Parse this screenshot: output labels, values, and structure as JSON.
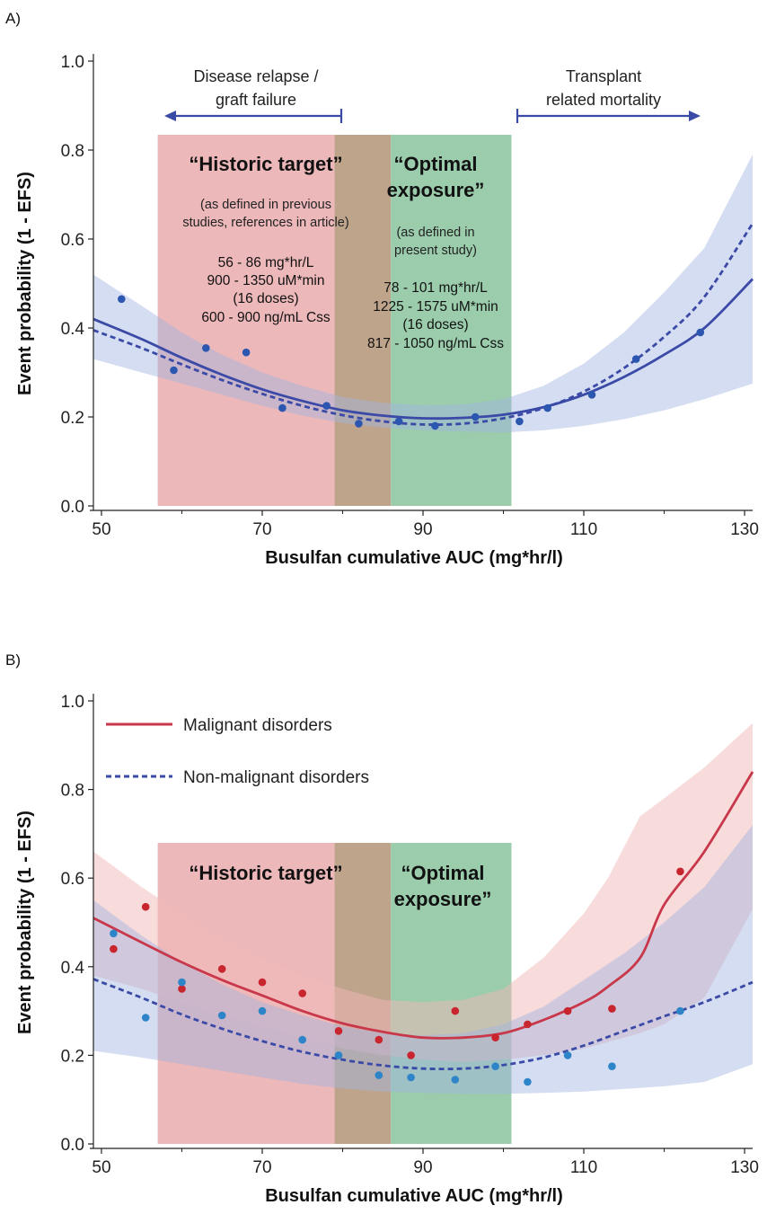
{
  "chart_data": [
    {
      "panel": "A)",
      "type": "line",
      "xlabel": "Busulfan cumulative AUC (mg*hr/l)",
      "ylabel": "Event probability (1 - EFS)",
      "xlim": [
        49,
        131
      ],
      "ylim": [
        0,
        1.0
      ],
      "xticks": [
        50,
        70,
        90,
        110,
        130
      ],
      "yticks": [
        "0.0",
        "0.2",
        "0.4",
        "0.6",
        "0.8",
        "1.0"
      ],
      "regions": [
        {
          "label": "“Historic target”",
          "x0": 57,
          "x1": 86,
          "color": "#e8a4a6"
        },
        {
          "label": "“Optimal exposure”",
          "x0": 79,
          "x1": 101,
          "color": "#7fbf96"
        }
      ],
      "annotations": {
        "left_arrow": [
          "Disease relapse /",
          "graft failure"
        ],
        "right_arrow": [
          "Transplant",
          "related mortality"
        ],
        "historic_title": "“Historic target”",
        "historic_sub": [
          "(as defined in previous",
          "studies, references in article)"
        ],
        "historic_values": [
          "56 - 86 mg*hr/L",
          "900 - 1350 uM*min",
          "(16 doses)",
          "600 - 900 ng/mL Css"
        ],
        "optimal_title": [
          "“Optimal",
          "exposure”"
        ],
        "optimal_sub": [
          "(as defined in",
          "present study)"
        ],
        "optimal_values": [
          "78 - 101 mg*hr/L",
          "1225 - 1575 uM*min",
          "(16 doses)",
          "817 - 1050 ng/mL Css"
        ]
      },
      "series": [
        {
          "style": "solid",
          "color": "#3a4aa6",
          "x": [
            49,
            55,
            60,
            65,
            70,
            75,
            80,
            85,
            90,
            95,
            100,
            105,
            110,
            115,
            120,
            125,
            131
          ],
          "y": [
            0.42,
            0.375,
            0.333,
            0.295,
            0.262,
            0.236,
            0.215,
            0.203,
            0.197,
            0.198,
            0.205,
            0.222,
            0.25,
            0.29,
            0.34,
            0.4,
            0.51
          ],
          "ci_upper": [
            0.52,
            0.45,
            0.39,
            0.34,
            0.3,
            0.27,
            0.245,
            0.232,
            0.226,
            0.228,
            0.24,
            0.27,
            0.32,
            0.39,
            0.48,
            0.58,
            0.79
          ],
          "ci_lower": [
            0.33,
            0.3,
            0.275,
            0.25,
            0.225,
            0.203,
            0.186,
            0.176,
            0.17,
            0.167,
            0.165,
            0.17,
            0.18,
            0.195,
            0.215,
            0.24,
            0.275
          ]
        },
        {
          "style": "dashed",
          "color": "#3a4aa6",
          "x": [
            49,
            55,
            60,
            65,
            70,
            75,
            80,
            85,
            90,
            95,
            100,
            105,
            110,
            115,
            120,
            125,
            131
          ],
          "y": [
            0.395,
            0.355,
            0.318,
            0.283,
            0.252,
            0.225,
            0.204,
            0.19,
            0.183,
            0.185,
            0.197,
            0.22,
            0.257,
            0.31,
            0.38,
            0.47,
            0.635
          ]
        }
      ],
      "points": {
        "color": "#2b57b0",
        "x": [
          52.5,
          59,
          63,
          68,
          72.5,
          78,
          82,
          87,
          91.5,
          96.5,
          102,
          105.5,
          111,
          116.5,
          124.5
        ],
        "y": [
          0.465,
          0.305,
          0.355,
          0.345,
          0.22,
          0.225,
          0.185,
          0.19,
          0.18,
          0.2,
          0.19,
          0.22,
          0.25,
          0.33,
          0.39
        ]
      }
    },
    {
      "panel": "B)",
      "type": "line",
      "xlabel": "Busulfan cumulative AUC (mg*hr/l)",
      "ylabel": "Event probability (1 - EFS)",
      "xlim": [
        49,
        131
      ],
      "ylim": [
        0,
        1.0
      ],
      "xticks": [
        50,
        70,
        90,
        110,
        130
      ],
      "yticks": [
        "0.0",
        "0.2",
        "0.4",
        "0.6",
        "0.8",
        "1.0"
      ],
      "regions": [
        {
          "label": "“Historic target”",
          "x0": 57,
          "x1": 86,
          "color": "#e8a4a6"
        },
        {
          "label": "“Optimal exposure”",
          "x0": 79,
          "x1": 101,
          "color": "#7fbf96"
        }
      ],
      "annotations": {
        "historic_title": "“Historic target”",
        "optimal_title": [
          "“Optimal",
          "exposure”"
        ]
      },
      "legend": [
        {
          "name": "Malignant disorders",
          "style": "solid",
          "color": "#c8374a"
        },
        {
          "name": "Non-malignant disorders",
          "style": "dashed",
          "color": "#3a4aa6"
        }
      ],
      "series": [
        {
          "name": "Malignant disorders",
          "style": "solid",
          "color": "#c8374a",
          "x": [
            49,
            55,
            60,
            65,
            70,
            75,
            80,
            85,
            90,
            95,
            100,
            105,
            110,
            113,
            117,
            120,
            125,
            131
          ],
          "y": [
            0.51,
            0.455,
            0.41,
            0.37,
            0.335,
            0.3,
            0.272,
            0.253,
            0.24,
            0.24,
            0.25,
            0.28,
            0.32,
            0.355,
            0.42,
            0.54,
            0.66,
            0.84
          ],
          "ci_upper": [
            0.66,
            0.58,
            0.52,
            0.465,
            0.42,
            0.38,
            0.35,
            0.325,
            0.32,
            0.325,
            0.35,
            0.42,
            0.52,
            0.6,
            0.74,
            0.78,
            0.85,
            0.95
          ],
          "ci_lower": [
            0.38,
            0.35,
            0.32,
            0.29,
            0.265,
            0.24,
            0.215,
            0.2,
            0.19,
            0.185,
            0.19,
            0.2,
            0.215,
            0.23,
            0.25,
            0.27,
            0.33,
            0.53
          ]
        },
        {
          "name": "Non-malignant disorders",
          "style": "dashed",
          "color": "#3a4aa6",
          "x": [
            49,
            55,
            60,
            65,
            70,
            75,
            80,
            85,
            90,
            95,
            100,
            105,
            110,
            115,
            120,
            125,
            131
          ],
          "y": [
            0.372,
            0.33,
            0.292,
            0.26,
            0.232,
            0.208,
            0.19,
            0.177,
            0.17,
            0.17,
            0.178,
            0.195,
            0.222,
            0.255,
            0.288,
            0.32,
            0.365
          ],
          "ci_upper": [
            0.55,
            0.47,
            0.41,
            0.36,
            0.32,
            0.29,
            0.265,
            0.25,
            0.245,
            0.25,
            0.27,
            0.31,
            0.37,
            0.43,
            0.5,
            0.58,
            0.72
          ],
          "ci_lower": [
            0.21,
            0.195,
            0.18,
            0.165,
            0.15,
            0.135,
            0.125,
            0.118,
            0.115,
            0.113,
            0.113,
            0.115,
            0.118,
            0.124,
            0.13,
            0.14,
            0.18
          ]
        }
      ],
      "points": [
        {
          "series": "Malignant disorders",
          "color": "#c8252e",
          "x": [
            51.5,
            55.5,
            60,
            65,
            70,
            75,
            79.5,
            84.5,
            88.5,
            94,
            99,
            103,
            108,
            113.5,
            122
          ],
          "y": [
            0.44,
            0.535,
            0.35,
            0.395,
            0.365,
            0.34,
            0.255,
            0.235,
            0.2,
            0.3,
            0.24,
            0.27,
            0.3,
            0.305,
            0.615
          ]
        },
        {
          "series": "Non-malignant disorders",
          "color": "#2e84c8",
          "x": [
            51.5,
            55.5,
            60,
            65,
            70,
            75,
            79.5,
            84.5,
            88.5,
            94,
            99,
            103,
            108,
            113.5,
            122
          ],
          "y": [
            0.475,
            0.285,
            0.365,
            0.29,
            0.3,
            0.235,
            0.2,
            0.155,
            0.15,
            0.145,
            0.175,
            0.14,
            0.2,
            0.175,
            0.3
          ]
        }
      ]
    }
  ]
}
